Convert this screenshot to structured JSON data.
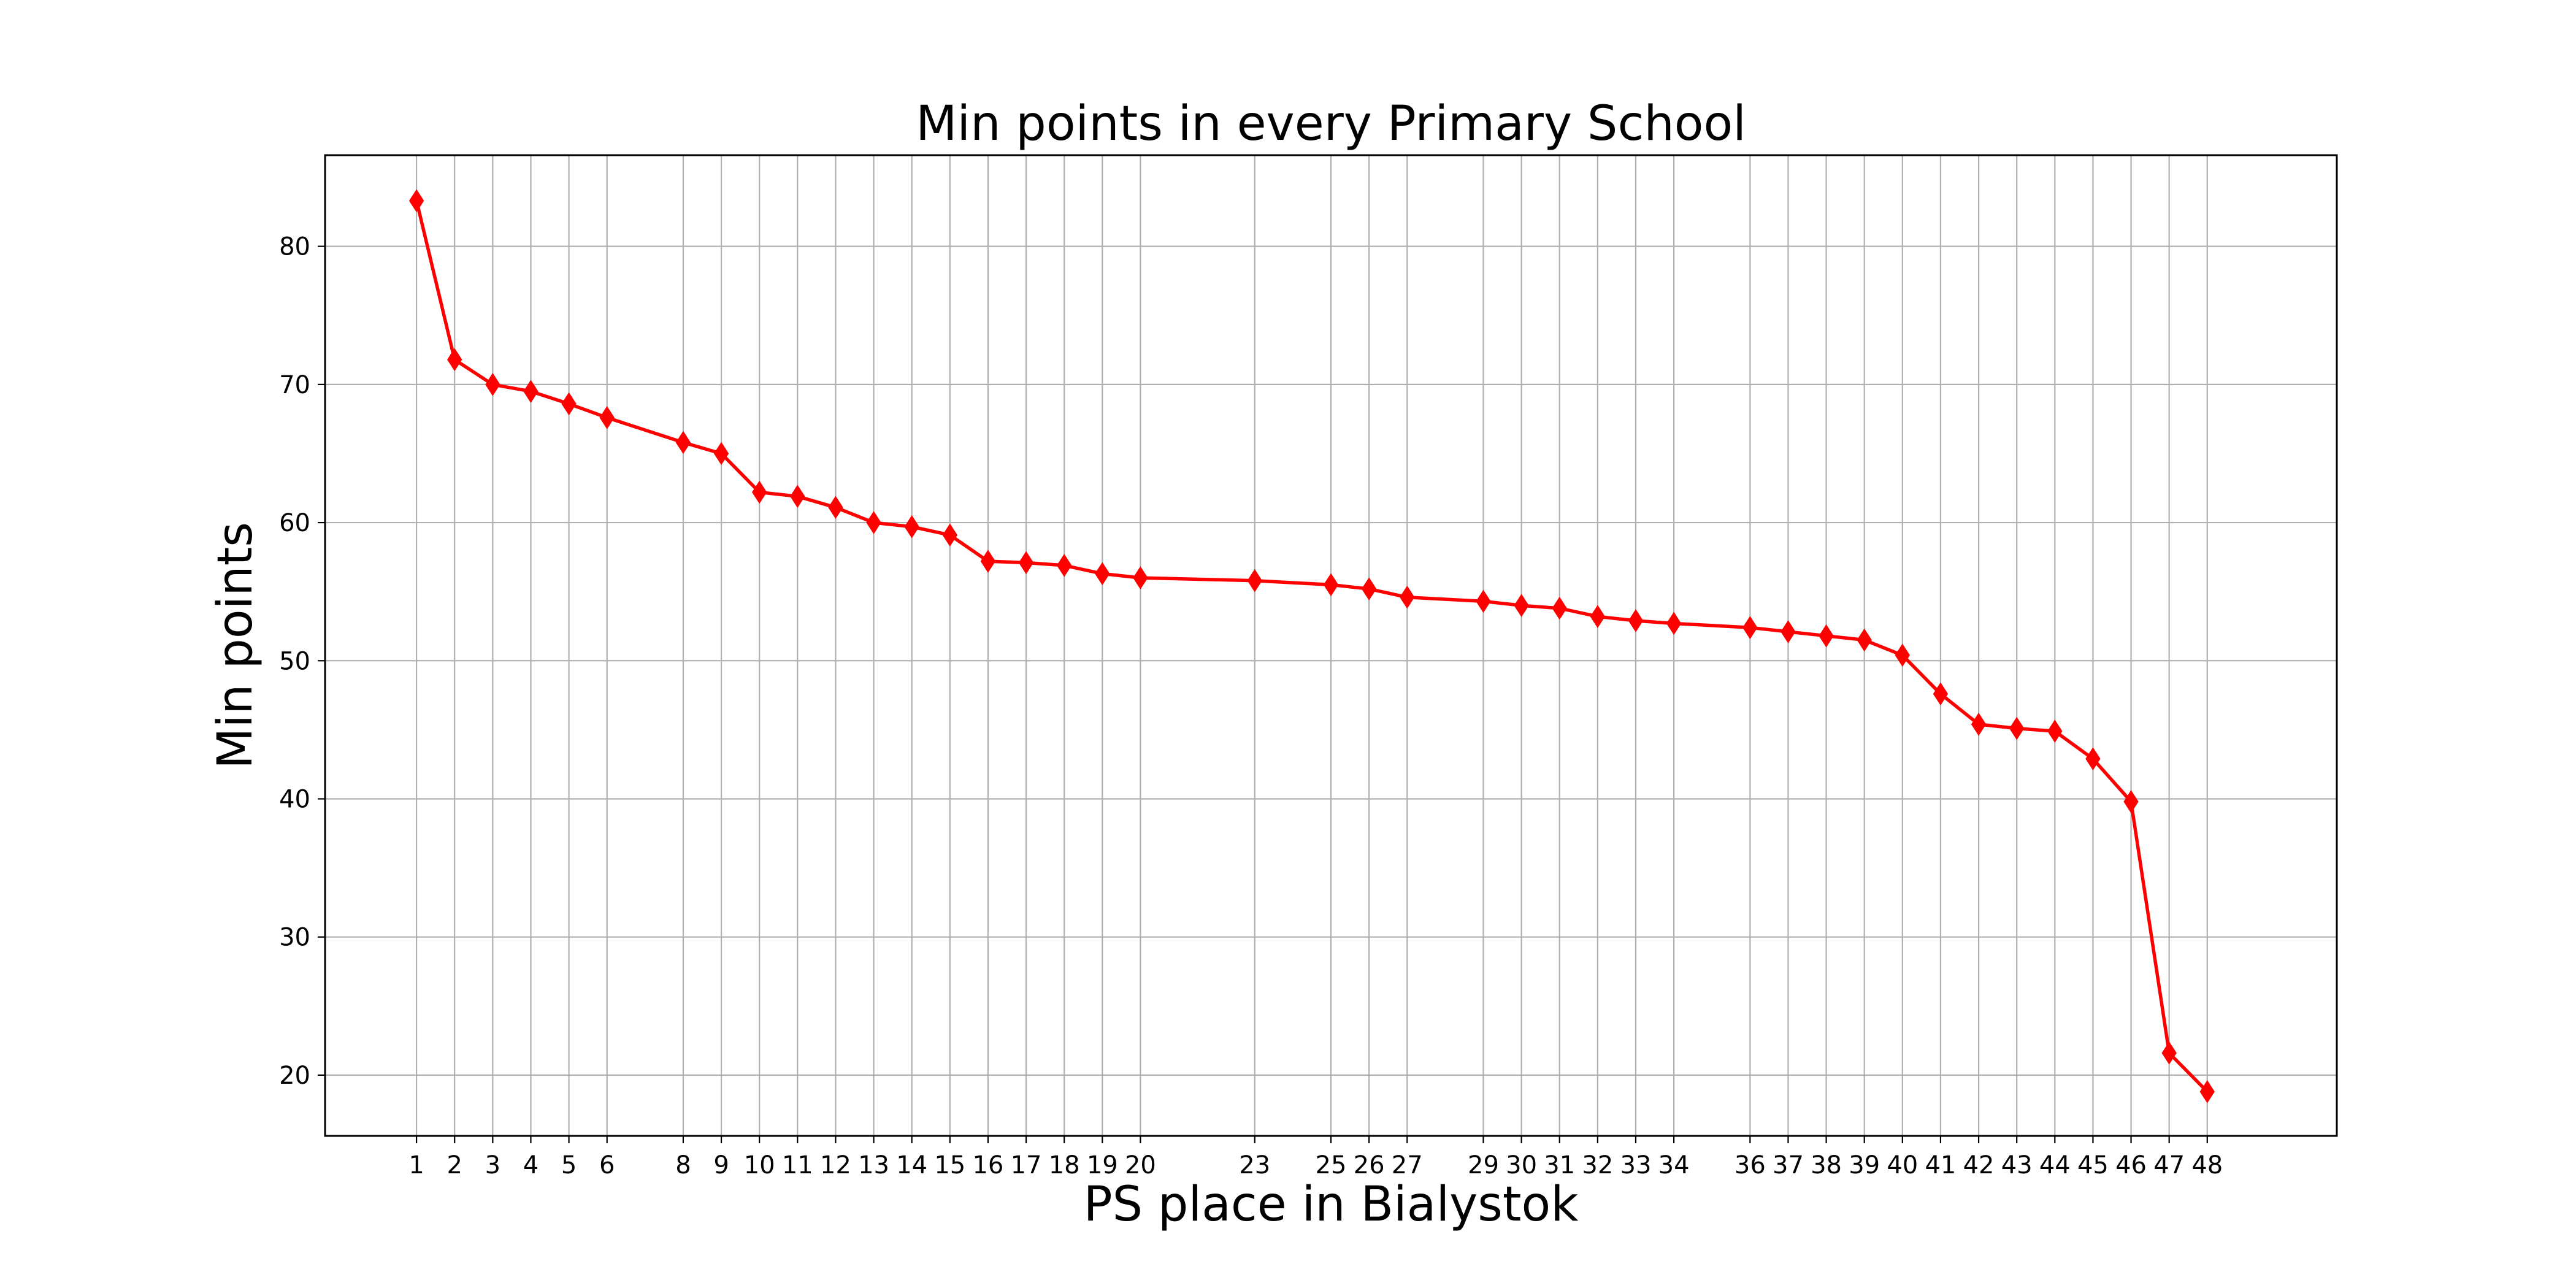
{
  "chart_data": {
    "type": "line",
    "title": "Min points in every Primary School",
    "xlabel": "PS place in Bialystok",
    "ylabel": "Min points",
    "x": [
      1,
      2,
      3,
      4,
      5,
      6,
      8,
      9,
      10,
      11,
      12,
      13,
      14,
      15,
      16,
      17,
      18,
      19,
      20,
      23,
      25,
      26,
      27,
      29,
      30,
      31,
      32,
      33,
      34,
      36,
      37,
      38,
      39,
      40,
      41,
      42,
      43,
      44,
      45,
      46,
      47,
      48
    ],
    "y": [
      83.3,
      71.8,
      70.0,
      69.5,
      68.6,
      67.6,
      65.8,
      65.0,
      62.2,
      61.9,
      61.1,
      60.0,
      59.7,
      59.1,
      57.2,
      57.1,
      56.9,
      56.3,
      56.0,
      55.8,
      55.5,
      55.2,
      54.6,
      54.3,
      54.0,
      53.8,
      53.2,
      52.9,
      52.7,
      52.4,
      52.1,
      51.8,
      51.5,
      50.4,
      47.6,
      45.4,
      45.1,
      44.9,
      42.9,
      39.8,
      21.6,
      18.8
    ],
    "xticks": [
      1,
      2,
      3,
      4,
      5,
      6,
      8,
      9,
      10,
      11,
      12,
      13,
      14,
      15,
      16,
      17,
      18,
      19,
      20,
      23,
      25,
      26,
      27,
      29,
      30,
      31,
      32,
      33,
      34,
      36,
      37,
      38,
      39,
      40,
      41,
      42,
      43,
      44,
      45,
      46,
      47,
      48
    ],
    "yticks": [
      20,
      30,
      40,
      50,
      60,
      70,
      80
    ],
    "xlim": [
      -1.4,
      51.4
    ],
    "ylim": [
      15.6,
      86.6
    ],
    "grid": true,
    "line_color": "#ff0000",
    "marker": "diamond"
  }
}
